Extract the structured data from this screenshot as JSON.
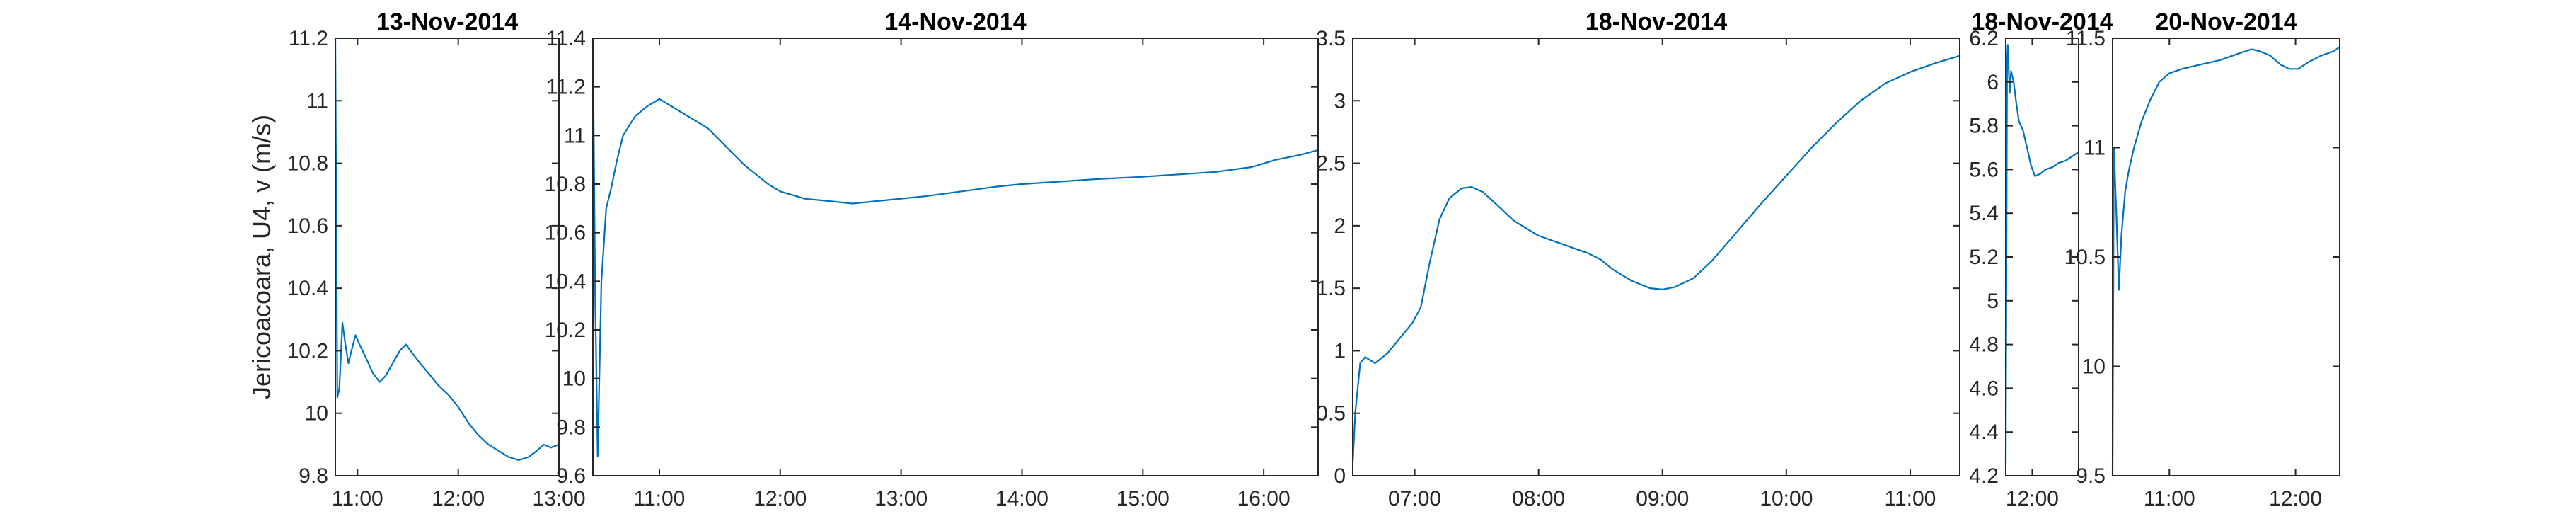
{
  "figure": {
    "ylabel": "Jericoacoara, U4, v (m/s)",
    "line_color": "#0072bd"
  },
  "chart_data": [
    {
      "type": "line",
      "title": "13-Nov-2014",
      "ylim": [
        9.8,
        11.2
      ],
      "yticks": [
        9.8,
        10,
        10.2,
        10.4,
        10.6,
        10.8,
        11,
        11.2
      ],
      "ytick_labels": [
        "9.8",
        "10",
        "10.2",
        "10.4",
        "10.6",
        "10.8",
        "11",
        "11.2"
      ],
      "xlim": [
        10.78,
        13.0
      ],
      "xticks": [
        11,
        12,
        13
      ],
      "xtick_labels": [
        "11:00",
        "12:00",
        "13:00"
      ],
      "series": [
        {
          "values": [
            [
              10.78,
              11.2
            ],
            [
              10.79,
              10.6
            ],
            [
              10.8,
              10.05
            ],
            [
              10.82,
              10.08
            ],
            [
              10.85,
              10.29
            ],
            [
              10.88,
              10.22
            ],
            [
              10.91,
              10.16
            ],
            [
              10.94,
              10.2
            ],
            [
              10.98,
              10.25
            ],
            [
              11.02,
              10.22
            ],
            [
              11.08,
              10.18
            ],
            [
              11.15,
              10.13
            ],
            [
              11.22,
              10.1
            ],
            [
              11.28,
              10.12
            ],
            [
              11.35,
              10.16
            ],
            [
              11.42,
              10.2
            ],
            [
              11.48,
              10.22
            ],
            [
              11.55,
              10.19
            ],
            [
              11.62,
              10.16
            ],
            [
              11.7,
              10.13
            ],
            [
              11.8,
              10.09
            ],
            [
              11.9,
              10.06
            ],
            [
              12.0,
              10.02
            ],
            [
              12.1,
              9.97
            ],
            [
              12.2,
              9.93
            ],
            [
              12.3,
              9.9
            ],
            [
              12.4,
              9.88
            ],
            [
              12.5,
              9.86
            ],
            [
              12.6,
              9.85
            ],
            [
              12.7,
              9.86
            ],
            [
              12.78,
              9.88
            ],
            [
              12.85,
              9.9
            ],
            [
              12.92,
              9.89
            ],
            [
              13.0,
              9.9
            ]
          ]
        }
      ]
    },
    {
      "type": "line",
      "title": "14-Nov-2014",
      "ylim": [
        9.6,
        11.4
      ],
      "yticks": [
        9.6,
        9.8,
        10,
        10.2,
        10.4,
        10.6,
        10.8,
        11,
        11.2,
        11.4
      ],
      "ytick_labels": [
        "9.6",
        "9.8",
        "10",
        "10.2",
        "10.4",
        "10.6",
        "10.8",
        "11",
        "11.2",
        "11.4"
      ],
      "xlim": [
        10.45,
        16.45
      ],
      "xticks": [
        11,
        12,
        13,
        14,
        15,
        16
      ],
      "xtick_labels": [
        "11:00",
        "12:00",
        "13:00",
        "14:00",
        "15:00",
        "16:00"
      ],
      "series": [
        {
          "values": [
            [
              10.45,
              11.4
            ],
            [
              10.47,
              10.3
            ],
            [
              10.49,
              9.68
            ],
            [
              10.52,
              10.4
            ],
            [
              10.56,
              10.7
            ],
            [
              10.6,
              10.78
            ],
            [
              10.65,
              10.9
            ],
            [
              10.7,
              11.0
            ],
            [
              10.8,
              11.08
            ],
            [
              10.9,
              11.12
            ],
            [
              11.0,
              11.15
            ],
            [
              11.1,
              11.12
            ],
            [
              11.2,
              11.09
            ],
            [
              11.3,
              11.06
            ],
            [
              11.4,
              11.03
            ],
            [
              11.5,
              10.98
            ],
            [
              11.6,
              10.93
            ],
            [
              11.7,
              10.88
            ],
            [
              11.8,
              10.84
            ],
            [
              11.9,
              10.8
            ],
            [
              12.0,
              10.77
            ],
            [
              12.2,
              10.74
            ],
            [
              12.4,
              10.73
            ],
            [
              12.6,
              10.72
            ],
            [
              12.8,
              10.73
            ],
            [
              13.0,
              10.74
            ],
            [
              13.2,
              10.75
            ],
            [
              13.5,
              10.77
            ],
            [
              13.8,
              10.79
            ],
            [
              14.0,
              10.8
            ],
            [
              14.3,
              10.81
            ],
            [
              14.6,
              10.82
            ],
            [
              15.0,
              10.83
            ],
            [
              15.3,
              10.84
            ],
            [
              15.6,
              10.85
            ],
            [
              15.9,
              10.87
            ],
            [
              16.1,
              10.9
            ],
            [
              16.3,
              10.92
            ],
            [
              16.45,
              10.94
            ]
          ]
        }
      ]
    },
    {
      "type": "line",
      "title": "18-Nov-2014",
      "ylim": [
        0,
        3.5
      ],
      "yticks": [
        0,
        0.5,
        1,
        1.5,
        2,
        2.5,
        3,
        3.5
      ],
      "ytick_labels": [
        "0",
        "0.5",
        "1",
        "1.5",
        "2",
        "2.5",
        "3",
        "3.5"
      ],
      "xlim": [
        6.5,
        11.4
      ],
      "xticks": [
        7,
        8,
        9,
        10,
        11
      ],
      "xtick_labels": [
        "07:00",
        "08:00",
        "09:00",
        "10:00",
        "11:00"
      ],
      "series": [
        {
          "values": [
            [
              6.5,
              0.1
            ],
            [
              6.52,
              0.5
            ],
            [
              6.56,
              0.9
            ],
            [
              6.6,
              0.95
            ],
            [
              6.68,
              0.9
            ],
            [
              6.78,
              0.98
            ],
            [
              6.88,
              1.1
            ],
            [
              6.98,
              1.22
            ],
            [
              7.05,
              1.35
            ],
            [
              7.12,
              1.7
            ],
            [
              7.2,
              2.05
            ],
            [
              7.28,
              2.22
            ],
            [
              7.38,
              2.3
            ],
            [
              7.46,
              2.31
            ],
            [
              7.55,
              2.27
            ],
            [
              7.65,
              2.18
            ],
            [
              7.8,
              2.04
            ],
            [
              8.0,
              1.92
            ],
            [
              8.2,
              1.85
            ],
            [
              8.4,
              1.78
            ],
            [
              8.5,
              1.73
            ],
            [
              8.6,
              1.65
            ],
            [
              8.75,
              1.56
            ],
            [
              8.9,
              1.5
            ],
            [
              9.0,
              1.49
            ],
            [
              9.1,
              1.51
            ],
            [
              9.25,
              1.58
            ],
            [
              9.4,
              1.72
            ],
            [
              9.6,
              1.95
            ],
            [
              9.8,
              2.18
            ],
            [
              10.0,
              2.4
            ],
            [
              10.2,
              2.62
            ],
            [
              10.4,
              2.82
            ],
            [
              10.6,
              3.0
            ],
            [
              10.8,
              3.14
            ],
            [
              11.0,
              3.23
            ],
            [
              11.2,
              3.3
            ],
            [
              11.4,
              3.36
            ]
          ]
        }
      ]
    },
    {
      "type": "line",
      "title": "18-Nov-2014",
      "ylim": [
        4.2,
        6.2
      ],
      "yticks": [
        4.2,
        4.4,
        4.6,
        4.8,
        5,
        5.2,
        5.4,
        5.6,
        5.8,
        6,
        6.2
      ],
      "ytick_labels": [
        "4.2",
        "4.4",
        "4.6",
        "4.8",
        "5",
        "5.2",
        "5.4",
        "5.6",
        "5.8",
        "6",
        "6.2"
      ],
      "xlim": [
        11.8,
        12.35
      ],
      "xticks": [
        12
      ],
      "xtick_labels": [
        "12:00"
      ],
      "series": [
        {
          "values": [
            [
              11.8,
              4.25
            ],
            [
              11.81,
              6.1
            ],
            [
              11.815,
              6.17
            ],
            [
              11.83,
              5.95
            ],
            [
              11.84,
              6.05
            ],
            [
              11.86,
              6.0
            ],
            [
              11.88,
              5.9
            ],
            [
              11.9,
              5.82
            ],
            [
              11.93,
              5.78
            ],
            [
              11.96,
              5.7
            ],
            [
              11.99,
              5.62
            ],
            [
              12.02,
              5.57
            ],
            [
              12.06,
              5.58
            ],
            [
              12.1,
              5.6
            ],
            [
              12.15,
              5.61
            ],
            [
              12.2,
              5.63
            ],
            [
              12.25,
              5.64
            ],
            [
              12.3,
              5.66
            ],
            [
              12.35,
              5.68
            ]
          ]
        }
      ]
    },
    {
      "type": "line",
      "title": "20-Nov-2014",
      "ylim": [
        9.5,
        11.5
      ],
      "yticks": [
        9.5,
        10,
        10.5,
        11,
        11.5
      ],
      "ytick_labels": [
        "9.5",
        "10",
        "10.5",
        "11",
        "11.5"
      ],
      "xlim": [
        10.55,
        12.35
      ],
      "xticks": [
        11,
        12
      ],
      "xtick_labels": [
        "11:00",
        "12:00"
      ],
      "series": [
        {
          "values": [
            [
              10.55,
              9.5
            ],
            [
              10.56,
              11.0
            ],
            [
              10.58,
              10.7
            ],
            [
              10.6,
              10.35
            ],
            [
              10.62,
              10.6
            ],
            [
              10.65,
              10.8
            ],
            [
              10.68,
              10.9
            ],
            [
              10.72,
              11.0
            ],
            [
              10.78,
              11.12
            ],
            [
              10.85,
              11.22
            ],
            [
              10.92,
              11.3
            ],
            [
              11.0,
              11.34
            ],
            [
              11.1,
              11.36
            ],
            [
              11.25,
              11.38
            ],
            [
              11.4,
              11.4
            ],
            [
              11.55,
              11.43
            ],
            [
              11.65,
              11.45
            ],
            [
              11.72,
              11.44
            ],
            [
              11.8,
              11.42
            ],
            [
              11.88,
              11.38
            ],
            [
              11.95,
              11.36
            ],
            [
              12.02,
              11.36
            ],
            [
              12.1,
              11.39
            ],
            [
              12.2,
              11.42
            ],
            [
              12.3,
              11.44
            ],
            [
              12.35,
              11.46
            ]
          ]
        }
      ]
    }
  ]
}
